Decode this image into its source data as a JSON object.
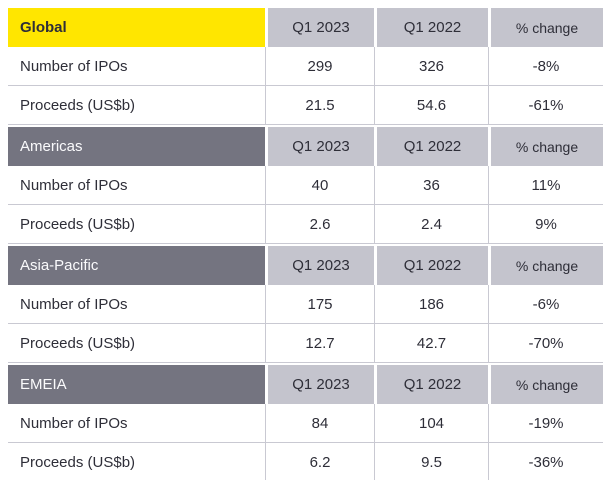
{
  "colors": {
    "accent_yellow": "#ffe600",
    "header_light_gray": "#c4c4cd",
    "section_dark_gray": "#747480",
    "text_dark": "#2e2e38",
    "section_header_text": "#fafafc",
    "grid_border": "#c9c9d2",
    "page_background": "#ffffff"
  },
  "chart_data": {
    "type": "table",
    "layout": "four stacked region sections, each with a header row (region + quarter columns) and two metric rows; grid lines light gray; first region header highlighted yellow",
    "sections": [
      {
        "region": "Global",
        "columns": [
          "Q1 2023",
          "Q1 2022",
          "% change"
        ],
        "rows": [
          {
            "label": "Number of IPOs",
            "values": [
              "299",
              "326",
              "-8%"
            ]
          },
          {
            "label": "Proceeds (US$b)",
            "values": [
              "21.5",
              "54.6",
              "-61%"
            ]
          }
        ]
      },
      {
        "region": "Americas",
        "columns": [
          "Q1 2023",
          "Q1 2022",
          "% change"
        ],
        "rows": [
          {
            "label": "Number of IPOs",
            "values": [
              "40",
              "36",
              "11%"
            ]
          },
          {
            "label": "Proceeds (US$b)",
            "values": [
              "2.6",
              "2.4",
              "9%"
            ]
          }
        ]
      },
      {
        "region": "Asia-Pacific",
        "columns": [
          "Q1 2023",
          "Q1 2022",
          "% change"
        ],
        "rows": [
          {
            "label": "Number of IPOs",
            "values": [
              "175",
              "186",
              "-6%"
            ]
          },
          {
            "label": "Proceeds (US$b)",
            "values": [
              "12.7",
              "42.7",
              "-70%"
            ]
          }
        ]
      },
      {
        "region": "EMEIA",
        "columns": [
          "Q1 2023",
          "Q1 2022",
          "% change"
        ],
        "rows": [
          {
            "label": "Number of IPOs",
            "values": [
              "84",
              "104",
              "-19%"
            ]
          },
          {
            "label": "Proceeds (US$b)",
            "values": [
              "6.2",
              "9.5",
              "-36%"
            ]
          }
        ]
      }
    ]
  }
}
